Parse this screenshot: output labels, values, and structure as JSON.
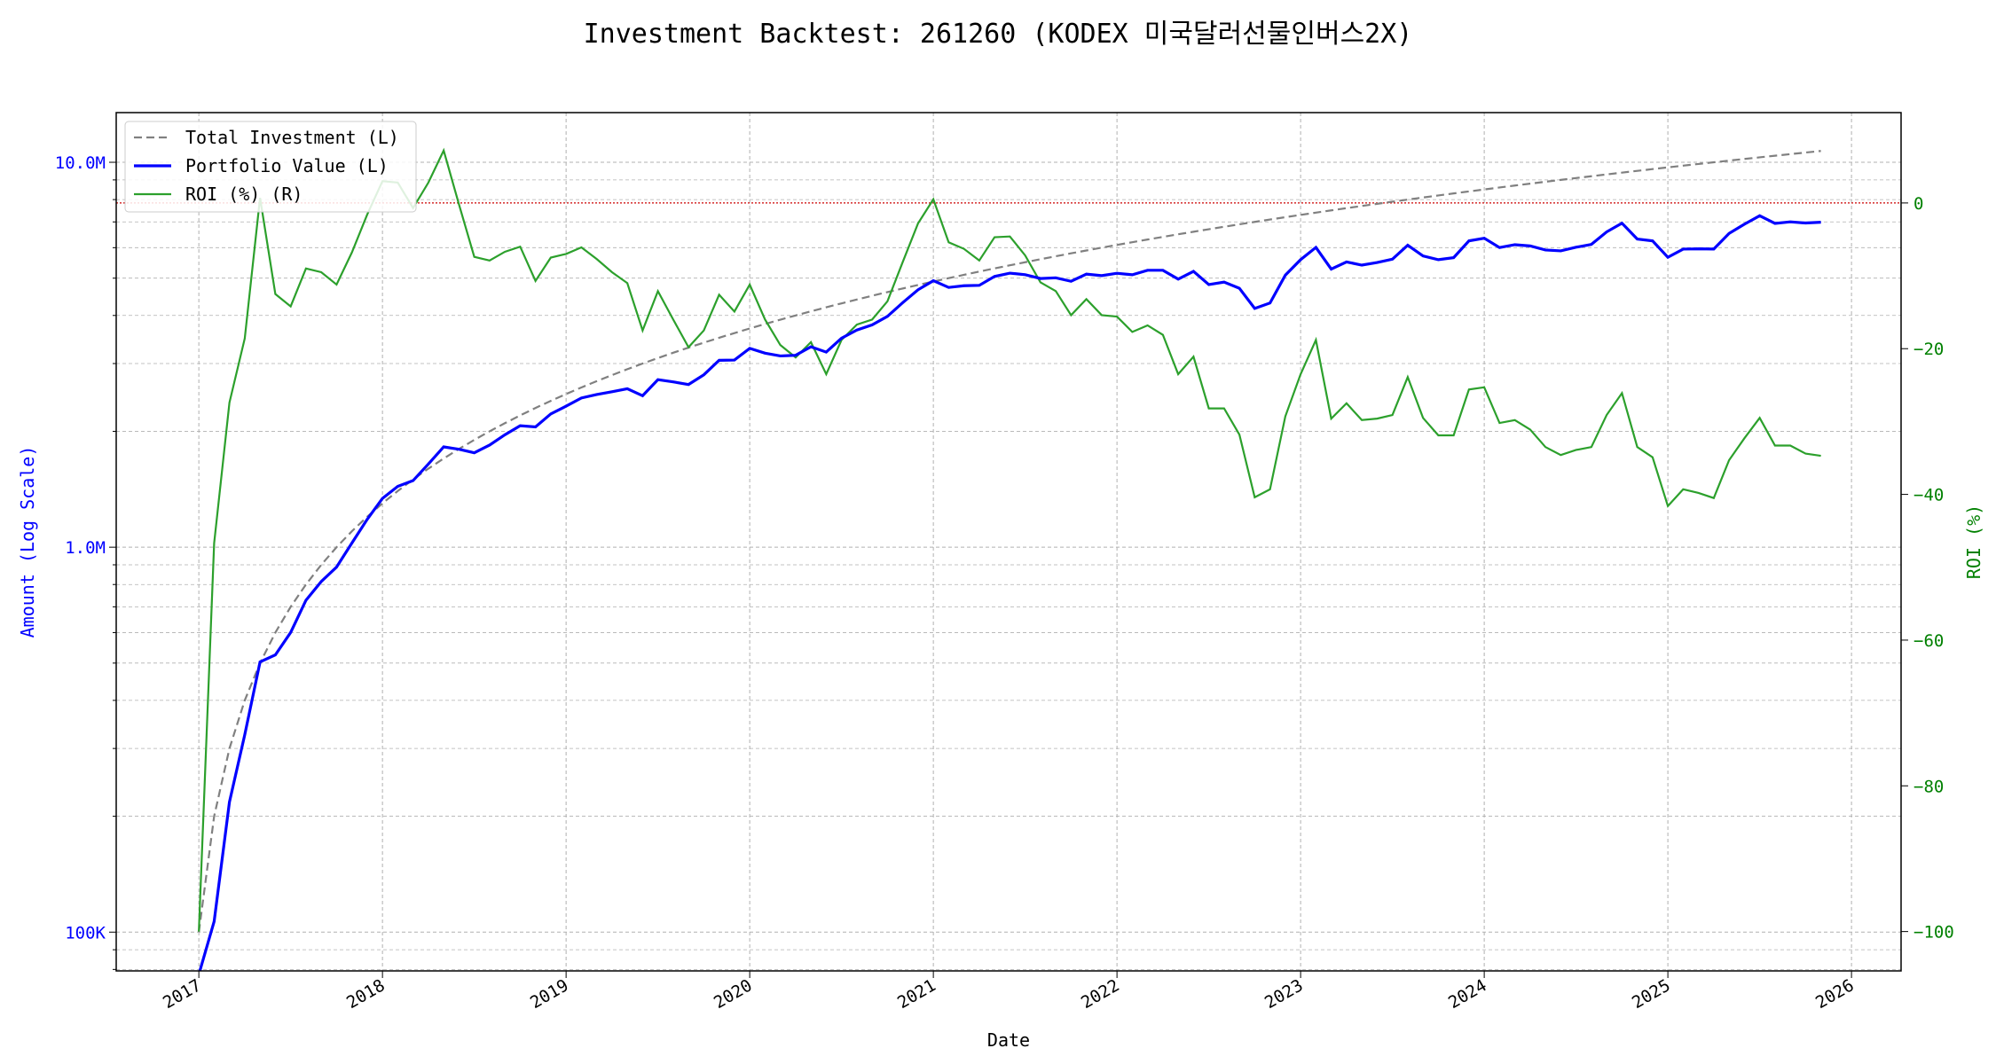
{
  "chart_data": {
    "type": "line",
    "title": "Investment Backtest: 261260 (KODEX 미국달러선물인버스2X)",
    "xlabel": "Date",
    "ylabel_left": "Amount (Log Scale)",
    "ylabel_right": "ROI (%)",
    "x_start": "2017-01",
    "x_frequency": "monthly",
    "xlim": [
      2016.55,
      2026.27
    ],
    "ylim_left": [
      79300,
      13460000
    ],
    "ylim_left_scale": "log",
    "ylim_right": [
      -105.4,
      12.4
    ],
    "x_ticks": [
      2017,
      2018,
      2019,
      2020,
      2021,
      2022,
      2023,
      2024,
      2025,
      2026
    ],
    "x_tick_labels": [
      "2017",
      "2018",
      "2019",
      "2020",
      "2021",
      "2022",
      "2023",
      "2024",
      "2025",
      "2026"
    ],
    "y_left_ticks": [
      100000,
      1000000,
      10000000
    ],
    "y_left_tick_labels": [
      "100K",
      "1.0M",
      "10.0M"
    ],
    "y_right_ticks": [
      0,
      -20,
      -40,
      -60,
      -80,
      -100
    ],
    "y_right_tick_labels": [
      "0",
      "−20",
      "−40",
      "−60",
      "−80",
      "−100"
    ],
    "grid": true,
    "legend_position": "top-left",
    "monthly_contribution": 100000,
    "series": [
      {
        "name": "Total Investment (L)",
        "axis": "left",
        "color": "#808080",
        "style": "dashed",
        "derived": "cumulative monthly_contribution"
      },
      {
        "name": "Portfolio Value (L)",
        "axis": "left",
        "color": "#0000ff",
        "style": "solid",
        "derived": "total_investment * (1 + roi/100)"
      },
      {
        "name": "ROI (%) (R)",
        "axis": "right",
        "color": "#2ca02c",
        "style": "solid",
        "values": [
          -100,
          -46.7,
          -27.4,
          -18.6,
          0.7,
          -12.5,
          -14.2,
          -9,
          -9.5,
          -11.2,
          -6.8,
          -1.6,
          3,
          2.8,
          -0.7,
          2.8,
          7.2,
          -0.2,
          -7.4,
          -7.9,
          -6.7,
          -6,
          -10.7,
          -7.5,
          -7,
          -6.1,
          -7.7,
          -9.5,
          -11,
          -17.5,
          -12.1,
          -16,
          -19.8,
          -17.5,
          -12.6,
          -14.9,
          -11.2,
          -16,
          -19.5,
          -21.2,
          -19.1,
          -23.5,
          -18.8,
          -16.7,
          -16,
          -13.5,
          -8.1,
          -2.8,
          0.5,
          -5.4,
          -6.3,
          -7.9,
          -4.7,
          -4.6,
          -7.2,
          -10.9,
          -12.1,
          -15.4,
          -13.2,
          -15.4,
          -15.6,
          -17.7,
          -16.8,
          -18.1,
          -23.5,
          -21.1,
          -28.2,
          -28.2,
          -31.8,
          -40.4,
          -39.3,
          -29.3,
          -23.5,
          -18.8,
          -29.6,
          -27.5,
          -29.8,
          -29.6,
          -29.1,
          -23.9,
          -29.5,
          -31.9,
          -31.9,
          -25.6,
          -25.3,
          -30.2,
          -29.8,
          -31.1,
          -33.5,
          -34.6,
          -33.9,
          -33.5,
          -29.1,
          -26.1,
          -33.5,
          -34.9,
          -41.6,
          -39.3,
          -39.8,
          -40.5,
          -35.3,
          -32.3,
          -29.5,
          -33.3,
          -33.3,
          -34.4,
          -34.7
        ]
      }
    ],
    "reference_line": {
      "axis": "right",
      "value": 0,
      "color": "#cc0000",
      "style": "dotted"
    }
  }
}
